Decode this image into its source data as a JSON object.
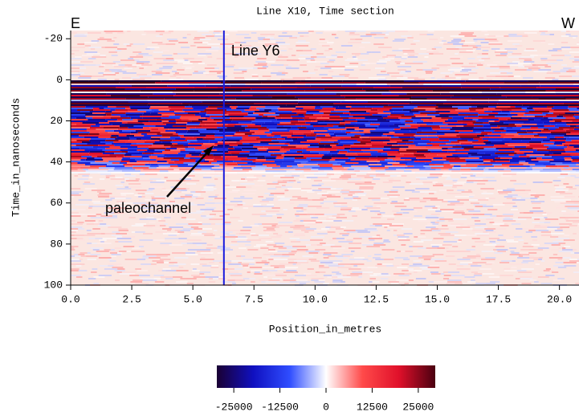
{
  "chart_data": {
    "type": "heatmap",
    "title": "Line X10, Time section",
    "xlabel": "Position_in_metres",
    "ylabel": "Time_in_nanoseconds",
    "xlim": [
      0,
      20.8
    ],
    "ylim": [
      -24,
      100
    ],
    "y_inverted": true,
    "xticks": [
      {
        "value": 0,
        "label": "0.0"
      },
      2.5,
      {
        "value": 5,
        "label": "5.0"
      },
      7.5,
      {
        "value": 10,
        "label": "10.0"
      },
      12.5,
      {
        "value": 15,
        "label": "15.0"
      },
      17.5,
      {
        "value": 20,
        "label": "20.0"
      }
    ],
    "yticks": [
      -20,
      0,
      20,
      40,
      60,
      80,
      100
    ],
    "colormap": [
      "#1a0033",
      "#1010c0",
      "#2f4dff",
      "#ffffff",
      "#ff4a4a",
      "#e0102a",
      "#4a0010"
    ],
    "clim": [
      -29600,
      29600
    ],
    "colorbar_ticks": [
      -25000,
      -12500,
      0,
      12500,
      25000
    ],
    "annotations": {
      "left_end": "E",
      "right_end": "W",
      "crossing_line": "Line Y6",
      "crossing_position": 6.27,
      "feature": "paleochannel"
    },
    "line_color": "#1a1adc"
  }
}
